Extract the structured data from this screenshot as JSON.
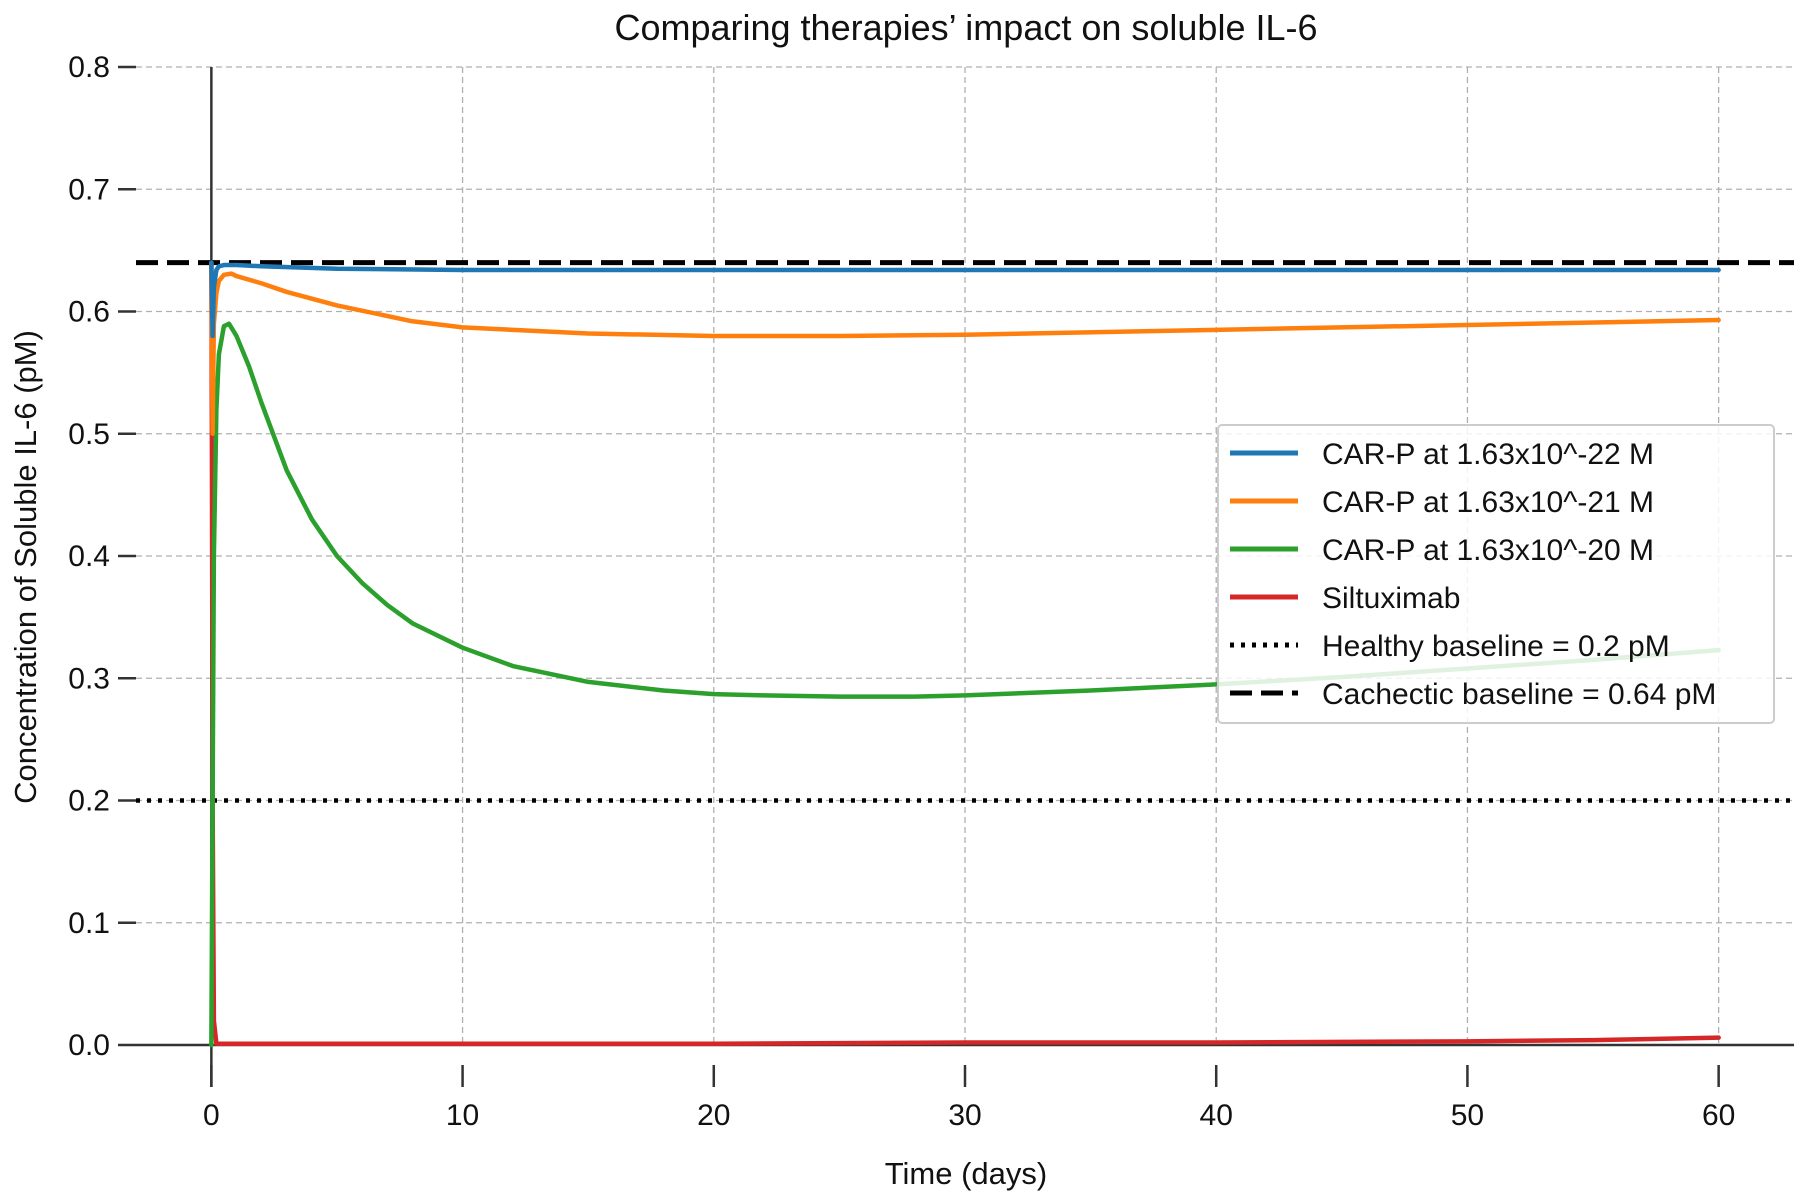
{
  "chart_data": {
    "type": "line",
    "title": "Comparing therapies’ impact on soluble IL-6",
    "xlabel": "Time (days)",
    "ylabel": "Concentration of Soluble IL-6 (pM)",
    "xlim": [
      -3,
      63
    ],
    "ylim": [
      0,
      0.8
    ],
    "xticks": [
      0,
      10,
      20,
      30,
      40,
      50,
      60
    ],
    "xtick_labels": [
      "0",
      "10",
      "20",
      "30",
      "40",
      "50",
      "60"
    ],
    "yticks": [
      0.0,
      0.1,
      0.2,
      0.3,
      0.4,
      0.5,
      0.6,
      0.7,
      0.8
    ],
    "ytick_labels": [
      "0.0",
      "0.1",
      "0.2",
      "0.3",
      "0.4",
      "0.5",
      "0.6",
      "0.7",
      "0.8"
    ],
    "grid": true,
    "legend_position": "center-right",
    "series": [
      {
        "name": "CAR-P at 1.63x10^-22 M",
        "color": "#1f77b4",
        "style": "solid",
        "x": [
          0,
          0.05,
          0.1,
          0.2,
          0.3,
          0.5,
          0.8,
          1,
          2,
          5,
          10,
          20,
          30,
          40,
          50,
          60
        ],
        "y": [
          0.64,
          0.58,
          0.62,
          0.634,
          0.637,
          0.638,
          0.638,
          0.638,
          0.637,
          0.635,
          0.634,
          0.634,
          0.634,
          0.634,
          0.634,
          0.634
        ]
      },
      {
        "name": "CAR-P at 1.63x10^-21 M",
        "color": "#ff7f0e",
        "style": "solid",
        "x": [
          0,
          0.05,
          0.1,
          0.2,
          0.3,
          0.5,
          0.8,
          1,
          2,
          3,
          5,
          8,
          10,
          15,
          20,
          25,
          30,
          40,
          50,
          60
        ],
        "y": [
          0.64,
          0.5,
          0.59,
          0.615,
          0.625,
          0.63,
          0.631,
          0.629,
          0.623,
          0.616,
          0.605,
          0.592,
          0.587,
          0.582,
          0.58,
          0.58,
          0.581,
          0.585,
          0.589,
          0.593
        ]
      },
      {
        "name": "CAR-P at 1.63x10^-20 M",
        "color": "#2ca02c",
        "style": "solid",
        "x": [
          0,
          0.05,
          0.1,
          0.2,
          0.3,
          0.5,
          0.7,
          1,
          1.5,
          2,
          3,
          4,
          5,
          6,
          7,
          8,
          10,
          12,
          15,
          18,
          20,
          22,
          25,
          28,
          30,
          35,
          40,
          45,
          50,
          55,
          60
        ],
        "y": [
          0.0,
          0.2,
          0.4,
          0.52,
          0.565,
          0.588,
          0.59,
          0.58,
          0.555,
          0.525,
          0.47,
          0.43,
          0.4,
          0.378,
          0.36,
          0.345,
          0.325,
          0.31,
          0.297,
          0.29,
          0.287,
          0.286,
          0.285,
          0.285,
          0.286,
          0.29,
          0.295,
          0.301,
          0.308,
          0.315,
          0.323
        ]
      },
      {
        "name": "Siltuximab",
        "color": "#d62728",
        "style": "solid",
        "x": [
          0,
          0.02,
          0.05,
          0.1,
          0.2,
          1,
          10,
          20,
          30,
          40,
          50,
          55,
          60
        ],
        "y": [
          0.64,
          0.5,
          0.2,
          0.02,
          0.001,
          0.001,
          0.001,
          0.001,
          0.002,
          0.002,
          0.003,
          0.004,
          0.006
        ]
      }
    ],
    "reference_lines": [
      {
        "name": "Healthy baseline = 0.2 pM",
        "y": 0.2,
        "color": "#000000",
        "style": "dotted"
      },
      {
        "name": "Cachectic baseline = 0.64 pM",
        "y": 0.64,
        "color": "#000000",
        "style": "dashed"
      }
    ]
  }
}
